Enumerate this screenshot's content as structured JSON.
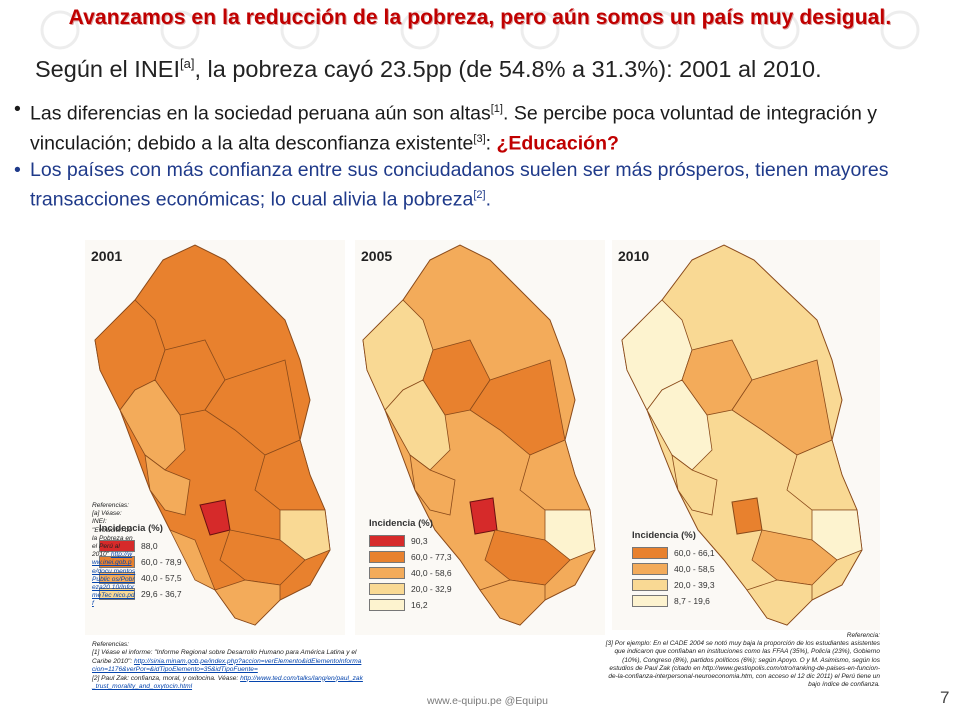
{
  "header": {
    "title": "Avanzamos en la reducción de la pobreza, pero aún somos un país muy desigual.",
    "subtitle_pre": "Según el INEI",
    "subtitle_ref": "[a]",
    "subtitle_post": ", la pobreza cayó 23.5pp (de 54.8% a 31.3%): 2001 al 2010."
  },
  "bullets": {
    "b1_a": "Las diferencias en la sociedad peruana aún son altas",
    "b1_ref1": "[1]",
    "b1_b": ". Se percibe poca voluntad de integración y vinculación; debido a la alta desconfianza existente",
    "b1_ref3": "[3]",
    "b1_c": ": ",
    "b1_edu": "¿Educación?",
    "b2_a": "Los países con más confianza entre sus conciudadanos suelen ser más prósperos, tienen mayores transacciones económicas; lo cual alivia la pobreza",
    "b2_ref2": "[2]",
    "b2_b": "."
  },
  "maps": [
    {
      "year": "2001",
      "legend_title": "Incidencia (%)",
      "legend": [
        {
          "label": "88,0",
          "color": "#d62a2a"
        },
        {
          "label": "60,0 - 78,9",
          "color": "#e8812e"
        },
        {
          "label": "40,0 - 57,5",
          "color": "#f3ab5a"
        },
        {
          "label": "29,6 - 36,7",
          "color": "#f9d994"
        }
      ]
    },
    {
      "year": "2005",
      "legend_title": "Incidencia (%)",
      "legend": [
        {
          "label": "90,3",
          "color": "#d62a2a"
        },
        {
          "label": "60,0 - 77,3",
          "color": "#e8812e"
        },
        {
          "label": "40,0 - 58,6",
          "color": "#f3ab5a"
        },
        {
          "label": "20,0 - 32,9",
          "color": "#f9d994"
        },
        {
          "label": "16,2",
          "color": "#fdf3cf"
        }
      ]
    },
    {
      "year": "2010",
      "legend_title": "Incidencia (%)",
      "legend": [
        {
          "label": "60,0 - 66,1",
          "color": "#e8812e"
        },
        {
          "label": "40,0 - 58,5",
          "color": "#f3ab5a"
        },
        {
          "label": "20,0 - 39,3",
          "color": "#f9d994"
        },
        {
          "label": "8,7 - 19,6",
          "color": "#fdf3cf"
        }
      ]
    }
  ],
  "refs_left": {
    "text": "Referencias: [a] Véase: INEI: \"Evolución de la Pobreza en el Perú al 2010\"",
    "link": "http://www.inei.gob.pe/docu mentosPublic os/Pobreza20 10/InformeTec nico.pdf"
  },
  "refs_bottom": {
    "head": "Referencias:",
    "r1": "[1] Véase el informe: \"Informe Regional sobre Desarrollo Humano para América Latina y el Caribe 2010\":",
    "r1_link": "http://sinia.minam.gob.pe/index.php?accion=verElemento&idElementoInformacion=1176&verPor=&idTipoElemento=35&idTipoFuente=",
    "r2": "[2] Paul Zak: confianza, moral, y oxitocina. Véase:",
    "r2_link": "http://www.ted.com/talks/lang/en/paul_zak_trust_morality_and_oxytocin.html"
  },
  "refs_right": {
    "head": "Referencia:",
    "text": "[3] Por ejemplo: En el CADE 2004 se notó muy baja la proporción de los estudiantes asistentes que indicaron que confiaban en instituciones como las FFAA (35%), Policía (23%), Gobierno (10%), Congreso (8%), partidos políticos (6%); según Apoyo. O y M. Asimismo, según los estudios de Paul Zak (citado en http://www.gestiopolis.com/otro/ranking-de-paises-en-funcion-de-la-confianza-interpersonal-neuroeconomia.htm, con acceso el 12 dic 2011) el Perú tiene un bajo índice de confianza."
  },
  "footer": {
    "site": "www.e-quipu.pe  @Equipu",
    "page": "7"
  }
}
